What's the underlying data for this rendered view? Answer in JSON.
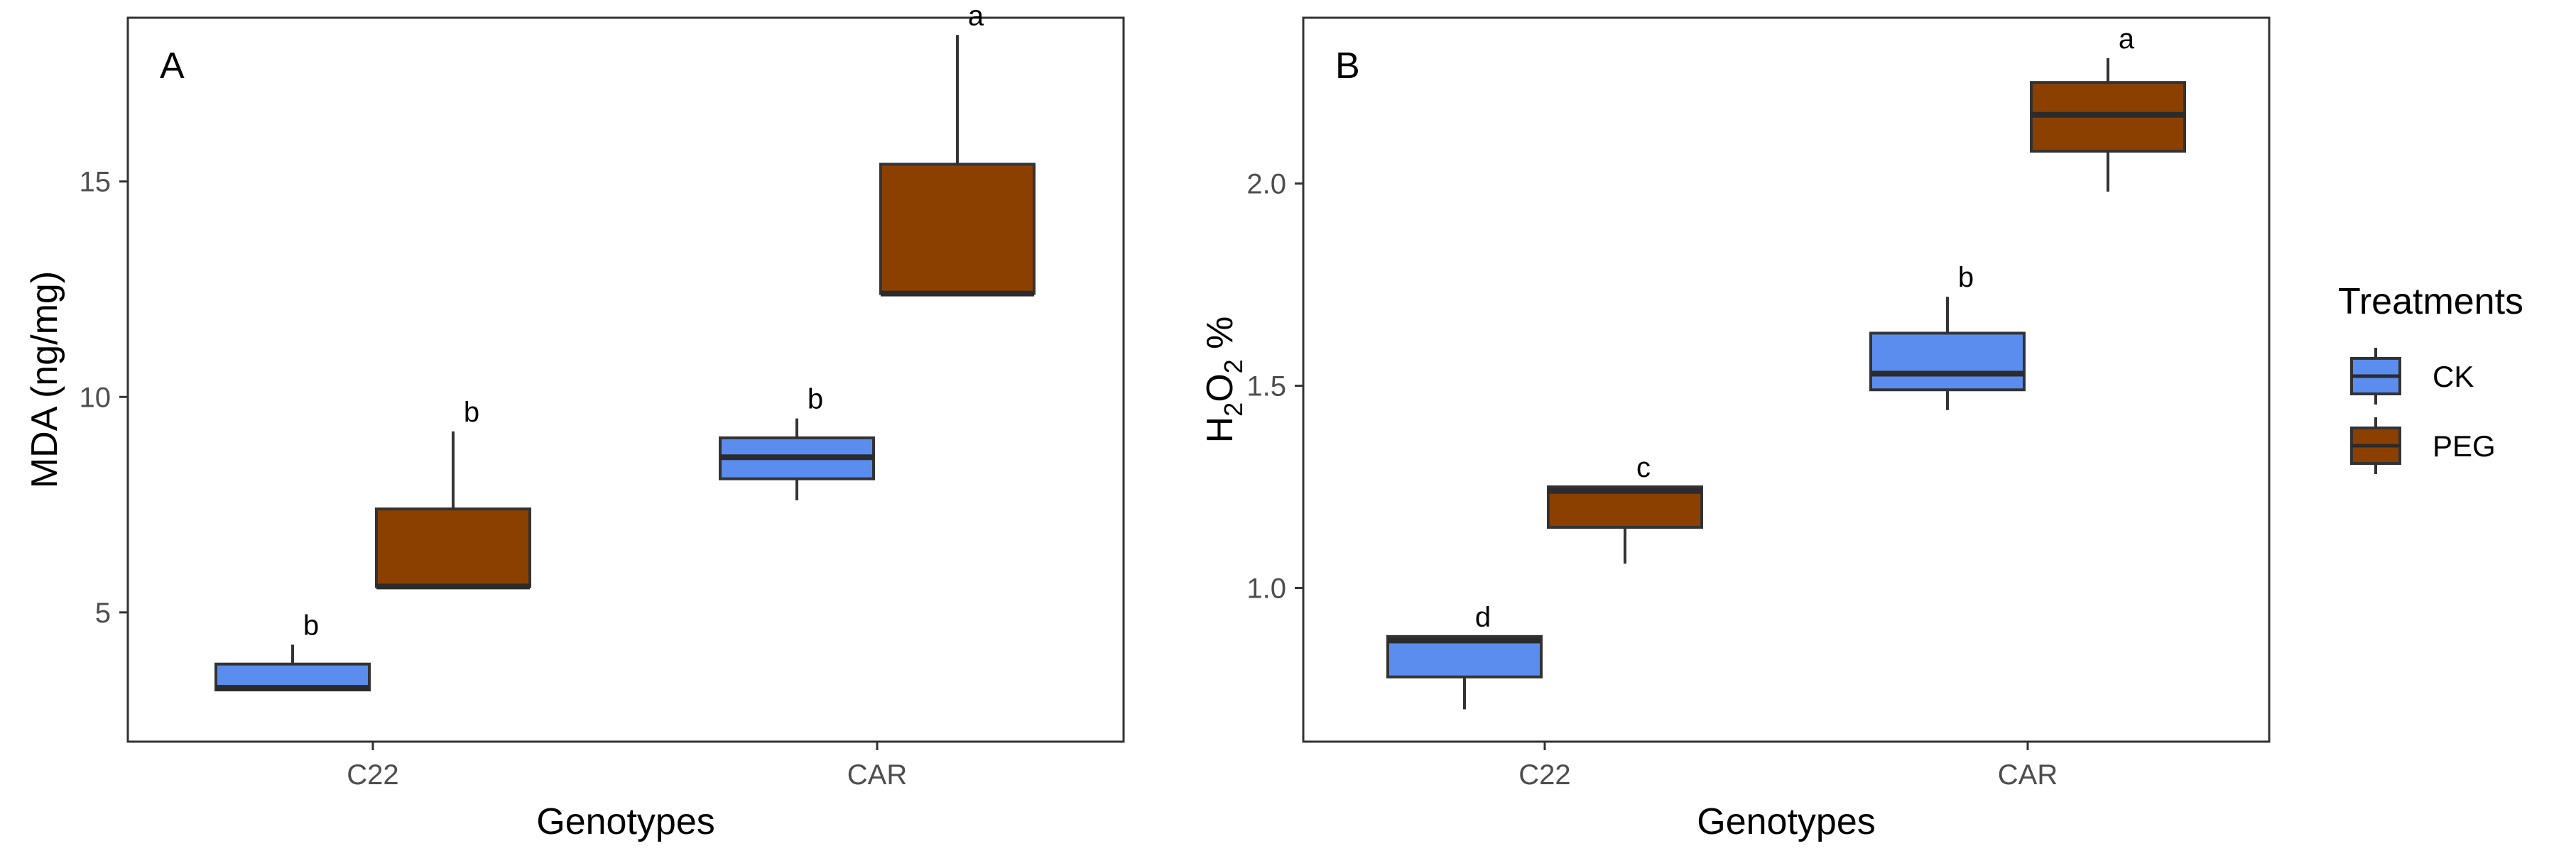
{
  "colors": {
    "CK": "#5b8def",
    "PEG": "#8b4000",
    "outline": "#333333",
    "median": "#2b2b2b"
  },
  "legend": {
    "title": "Treatments",
    "items": [
      {
        "key": "CK",
        "label": "CK"
      },
      {
        "key": "PEG",
        "label": "PEG"
      }
    ]
  },
  "chart_data": [
    {
      "type": "box",
      "panel": "A",
      "xlabel": "Genotypes",
      "ylabel": "MDA (ng/mg)",
      "categories": [
        "C22",
        "CAR"
      ],
      "ylim": [
        2.0,
        18.8
      ],
      "yticks": [
        5,
        10,
        15
      ],
      "ytick_labels": [
        "5",
        "10",
        "15"
      ],
      "series": [
        {
          "name": "CK",
          "boxes": [
            {
              "category": "C22",
              "min": 3.2,
              "q1": 3.2,
              "median": 3.25,
              "q3": 3.8,
              "max": 4.25,
              "label": "b"
            },
            {
              "category": "CAR",
              "min": 7.6,
              "q1": 8.1,
              "median": 8.6,
              "q3": 9.05,
              "max": 9.5,
              "label": "b"
            }
          ]
        },
        {
          "name": "PEG",
          "boxes": [
            {
              "category": "C22",
              "min": 5.6,
              "q1": 5.6,
              "median": 5.6,
              "q3": 7.4,
              "max": 9.2,
              "label": "b"
            },
            {
              "category": "CAR",
              "min": 12.4,
              "q1": 12.4,
              "median": 12.4,
              "q3": 15.4,
              "max": 18.4,
              "label": "a"
            }
          ]
        }
      ]
    },
    {
      "type": "box",
      "panel": "B",
      "xlabel": "Genotypes",
      "ylabel": "H2O2 %",
      "ylabel_parts": [
        "H",
        "2",
        "O",
        "2",
        " %"
      ],
      "categories": [
        "C22",
        "CAR"
      ],
      "ylim": [
        0.62,
        2.41
      ],
      "yticks": [
        1.0,
        1.5,
        2.0
      ],
      "ytick_labels": [
        "1.0",
        "1.5",
        "2.0"
      ],
      "series": [
        {
          "name": "CK",
          "boxes": [
            {
              "category": "C22",
              "min": 0.7,
              "q1": 0.78,
              "median": 0.87,
              "q3": 0.88,
              "max": 0.88,
              "label": "d"
            },
            {
              "category": "CAR",
              "min": 1.44,
              "q1": 1.49,
              "median": 1.53,
              "q3": 1.63,
              "max": 1.72,
              "label": "b"
            }
          ]
        },
        {
          "name": "PEG",
          "boxes": [
            {
              "category": "C22",
              "min": 1.06,
              "q1": 1.15,
              "median": 1.24,
              "q3": 1.25,
              "max": 1.25,
              "label": "c"
            },
            {
              "category": "CAR",
              "min": 1.98,
              "q1": 2.08,
              "median": 2.17,
              "q3": 2.25,
              "max": 2.31,
              "label": "a"
            }
          ]
        }
      ]
    }
  ]
}
